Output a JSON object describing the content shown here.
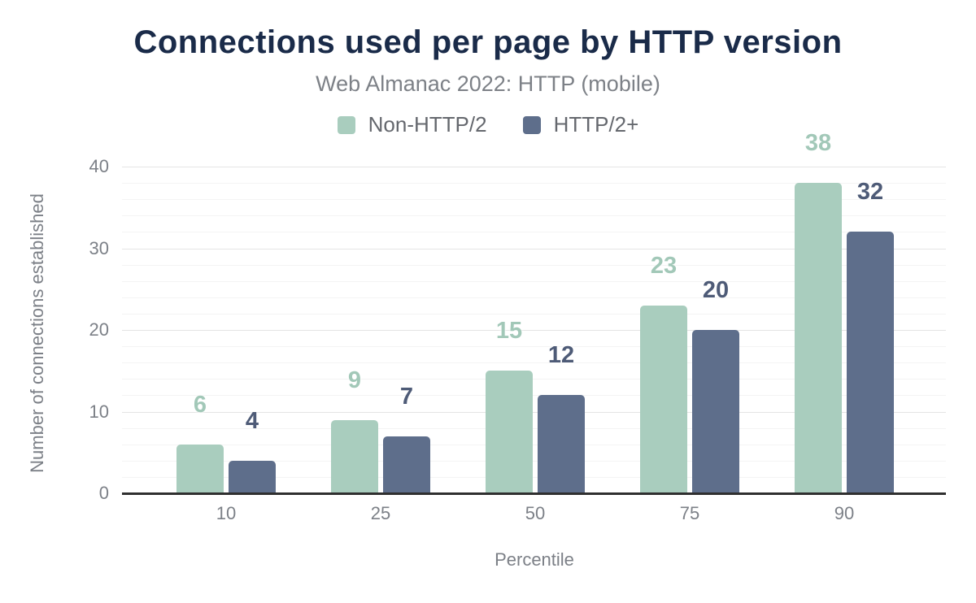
{
  "page_title": "Connections used per page by HTTP version",
  "header": {
    "title": "Connections used per page by HTTP version",
    "subtitle": "Web Almanac 2022: HTTP (mobile)"
  },
  "legend": {
    "items": [
      {
        "label": "Non-HTTP/2",
        "color": "#a9cdbe"
      },
      {
        "label": "HTTP/2+",
        "color": "#5e6e8b"
      }
    ]
  },
  "chart_data": {
    "type": "bar",
    "title": "Connections used per page by HTTP version",
    "subtitle": "Web Almanac 2022: HTTP (mobile)",
    "categories": [
      "10",
      "25",
      "50",
      "75",
      "90"
    ],
    "series": [
      {
        "name": "Non-HTTP/2",
        "values": [
          6,
          9,
          15,
          23,
          38
        ],
        "color": "#a9cdbe",
        "label_color": "#a2c8b8"
      },
      {
        "name": "HTTP/2+",
        "values": [
          4,
          7,
          12,
          20,
          32
        ],
        "color": "#5e6e8b",
        "label_color": "#4e5b77"
      }
    ],
    "xlabel": "Percentile",
    "ylabel": "Number of connections established",
    "ylim": [
      0,
      40
    ],
    "yticks": [
      0,
      10,
      20,
      30,
      40
    ],
    "minor_grid_step": 2,
    "grid": "horizontal",
    "legend_position": "top",
    "annotations": "value above each bar"
  },
  "colors": {
    "title": "#1a2b49",
    "subtitle": "#7d8187",
    "legend_text": "#65686e",
    "axis_text": "#7c8087",
    "axis_line": "#2f2f2f",
    "grid_major": "#e4e4e4",
    "grid_minor": "#f4f4f4",
    "background": "#ffffff"
  }
}
